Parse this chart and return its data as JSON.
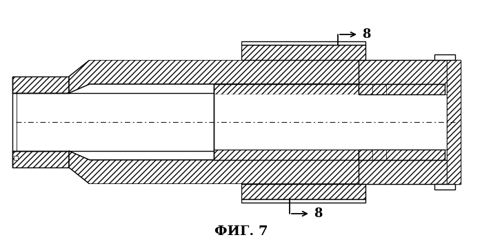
{
  "title": "ФИГ. 7",
  "label_8": "8",
  "bg_color": "#ffffff",
  "line_color": "#000000",
  "fig_width": 6.99,
  "fig_height": 3.54,
  "dpi": 100
}
